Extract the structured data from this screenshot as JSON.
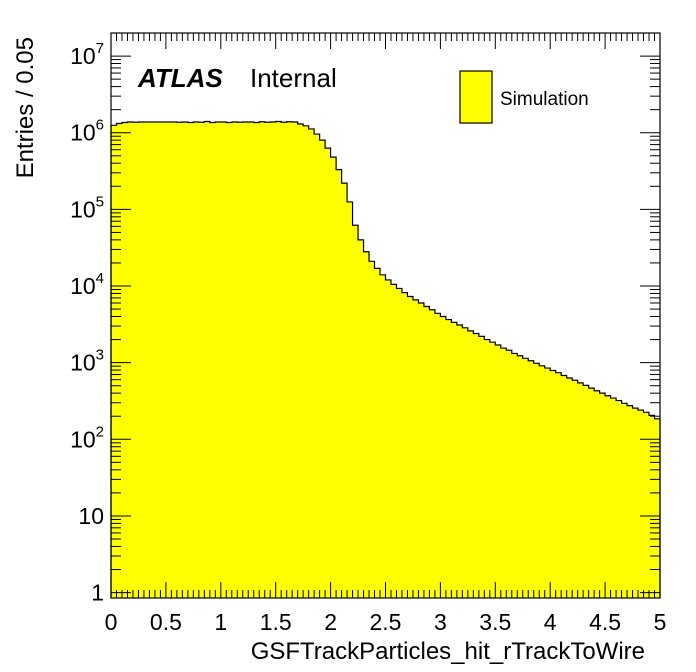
{
  "chart_data": {
    "type": "bar",
    "style": "filled-histogram",
    "xlabel": "GSFTrackParticles_hit_rTrackToWire",
    "ylabel": "Entries / 0.05",
    "xlim": [
      0,
      5
    ],
    "ylim": [
      0.85,
      20000000
    ],
    "yscale": "log",
    "bin_width": 0.05,
    "fill_color": "#ffff00",
    "line_color": "#000000",
    "x_ticks": [
      "0",
      "0.5",
      "1",
      "1.5",
      "2",
      "2.5",
      "3",
      "3.5",
      "4",
      "4.5",
      "5"
    ],
    "y_ticks": [
      {
        "base": "1",
        "exp": ""
      },
      {
        "base": "10",
        "exp": ""
      },
      {
        "base": "10",
        "exp": "2"
      },
      {
        "base": "10",
        "exp": "3"
      },
      {
        "base": "10",
        "exp": "4"
      },
      {
        "base": "10",
        "exp": "5"
      },
      {
        "base": "10",
        "exp": "6"
      },
      {
        "base": "10",
        "exp": "7"
      }
    ],
    "legend": {
      "position": "top-right",
      "entries": [
        "Simulation"
      ]
    },
    "experiment_label": "ATLAS",
    "status_label": "Internal",
    "series": [
      {
        "name": "Simulation",
        "values": [
          1250000,
          1320000,
          1360000,
          1380000,
          1370000,
          1380000,
          1380000,
          1380000,
          1380000,
          1380000,
          1380000,
          1380000,
          1370000,
          1380000,
          1360000,
          1380000,
          1370000,
          1400000,
          1360000,
          1380000,
          1380000,
          1360000,
          1380000,
          1370000,
          1380000,
          1380000,
          1360000,
          1390000,
          1370000,
          1380000,
          1400000,
          1370000,
          1390000,
          1380000,
          1300000,
          1230000,
          1120000,
          960000,
          800000,
          630000,
          480000,
          330000,
          220000,
          125000,
          62000,
          40000,
          28000,
          21000,
          17000,
          14000,
          12000,
          10500,
          9300,
          8200,
          7300,
          6600,
          6000,
          5400,
          4900,
          4400,
          4000,
          3650,
          3350,
          3100,
          2850,
          2600,
          2400,
          2200,
          2000,
          1850,
          1700,
          1550,
          1450,
          1320,
          1230,
          1140,
          1060,
          980,
          910,
          850,
          790,
          740,
          680,
          630,
          590,
          545,
          505,
          465,
          430,
          400,
          370,
          345,
          320,
          295,
          275,
          255,
          240,
          225,
          205,
          185
        ]
      }
    ]
  }
}
